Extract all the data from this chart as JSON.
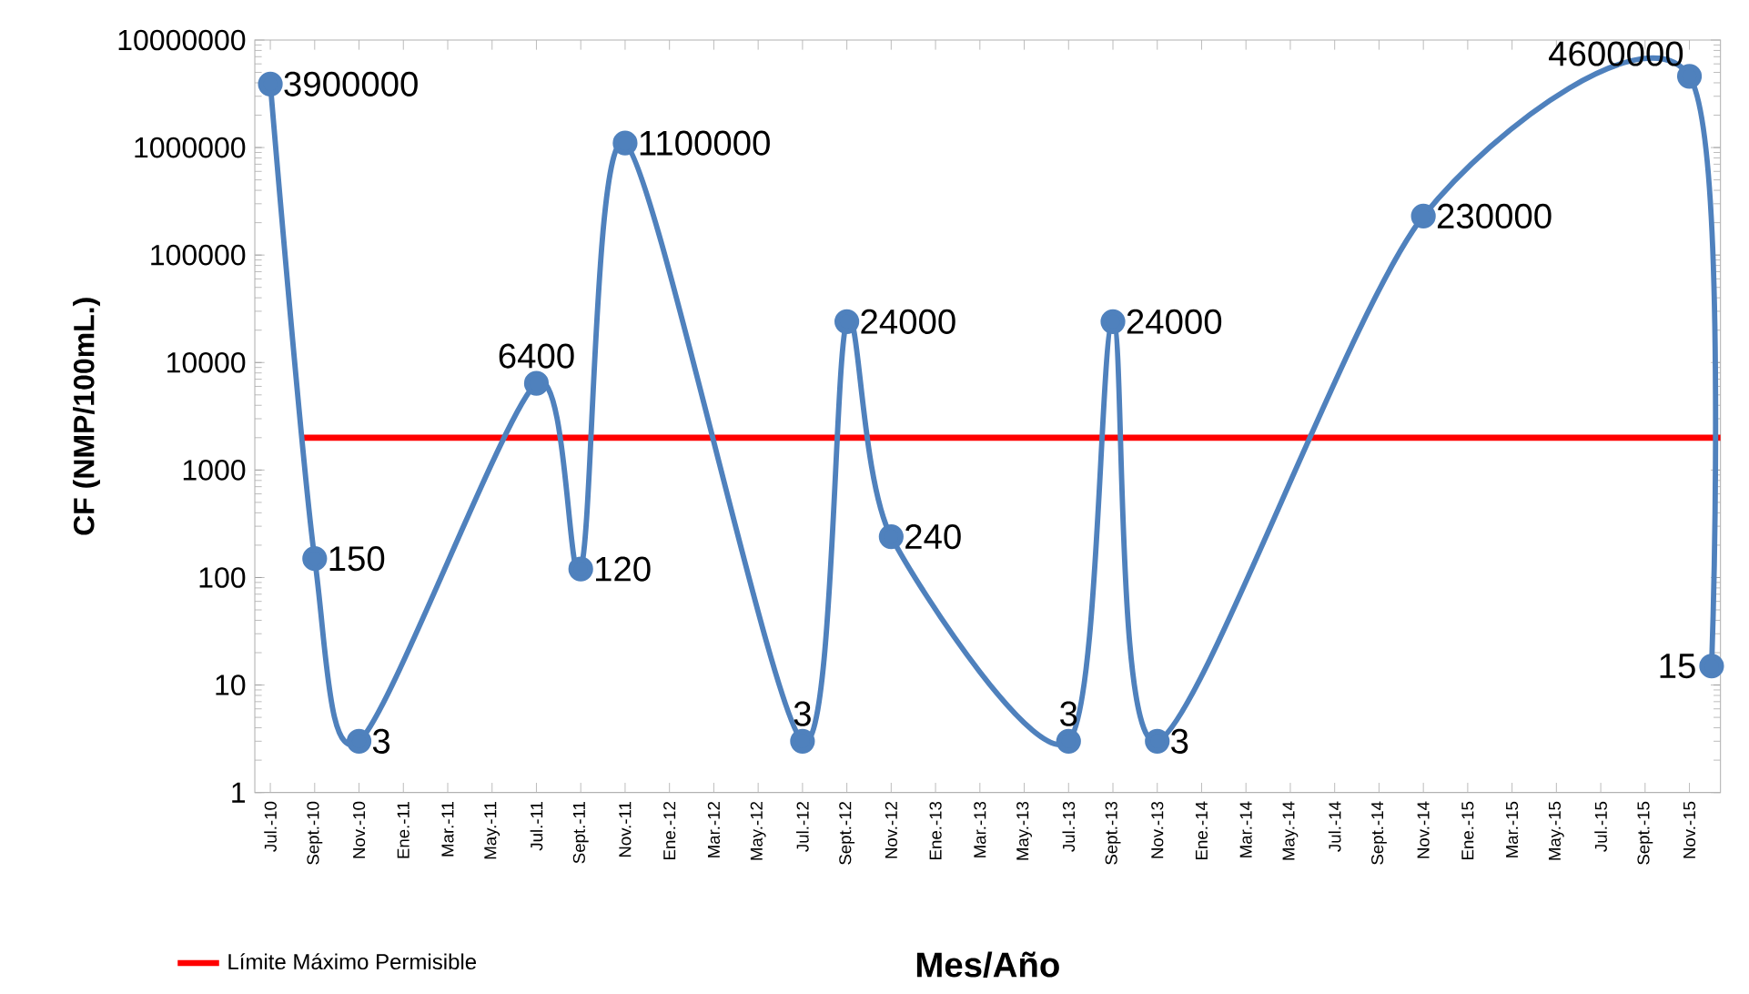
{
  "chart_data": {
    "type": "line",
    "xlabel": "Mes/Año",
    "ylabel": "CF (NMP/100mL.)",
    "categories": [
      "Jul.-10",
      null,
      "Sept.-10",
      null,
      "Nov.-10",
      null,
      "Ene.-11",
      null,
      "Mar.-11",
      null,
      "May.-11",
      null,
      "Jul.-11",
      null,
      "Sept.-11",
      null,
      "Nov.-11",
      null,
      "Ene.-12",
      null,
      "Mar.-12",
      null,
      "May.-12",
      null,
      "Jul.-12",
      null,
      "Sept.-12",
      null,
      "Nov.-12",
      null,
      "Ene.-13",
      null,
      "Mar.-13",
      null,
      "May.-13",
      null,
      "Jul.-13",
      null,
      "Sept.-13",
      null,
      "Nov.-13",
      null,
      "Ene.-14",
      null,
      "Mar.-14",
      null,
      "May.-14",
      null,
      "Jul.-14",
      null,
      "Sept.-14",
      null,
      "Nov.-14",
      null,
      "Ene.-15",
      null,
      "Mar.-15",
      null,
      "May.-15",
      null,
      "Jul.-15",
      null,
      "Sept.-15",
      null,
      "Nov.-15",
      null
    ],
    "series": [
      {
        "color": "#4f81bd",
        "values": [
          3900000,
          null,
          150,
          null,
          3,
          null,
          null,
          null,
          null,
          null,
          null,
          null,
          6400,
          null,
          120,
          null,
          1100000,
          null,
          null,
          null,
          null,
          null,
          null,
          null,
          3,
          null,
          24000,
          null,
          240,
          null,
          null,
          null,
          null,
          null,
          null,
          null,
          3,
          null,
          24000,
          null,
          3,
          null,
          null,
          null,
          null,
          null,
          null,
          null,
          null,
          null,
          null,
          null,
          230000,
          null,
          null,
          null,
          null,
          null,
          null,
          null,
          null,
          null,
          null,
          null,
          4600000,
          15
        ],
        "value_labels": [
          "3900000",
          null,
          "150",
          null,
          "3",
          null,
          null,
          null,
          null,
          null,
          null,
          null,
          "6400",
          null,
          "120",
          null,
          "1100000",
          null,
          null,
          null,
          null,
          null,
          null,
          null,
          "3",
          null,
          "24000",
          null,
          "240",
          null,
          null,
          null,
          null,
          null,
          null,
          null,
          "3",
          null,
          "24000",
          null,
          "3",
          null,
          null,
          null,
          null,
          null,
          null,
          null,
          null,
          null,
          null,
          null,
          "230000",
          null,
          null,
          null,
          null,
          null,
          null,
          null,
          null,
          null,
          null,
          null,
          "4600000",
          "15"
        ]
      }
    ],
    "log": "y",
    "ylim": [
      1,
      10000000
    ],
    "yticks": [
      1,
      10,
      100,
      1000,
      10000,
      100000,
      1000000,
      10000000
    ],
    "ref_lines": [
      {
        "axis": "y",
        "value": 2000,
        "label": "Límite Máximo Permisible",
        "color": "#ff0000"
      }
    ],
    "marker": "circle",
    "line_style": "solid",
    "grid": false,
    "legend": "bottom left"
  }
}
